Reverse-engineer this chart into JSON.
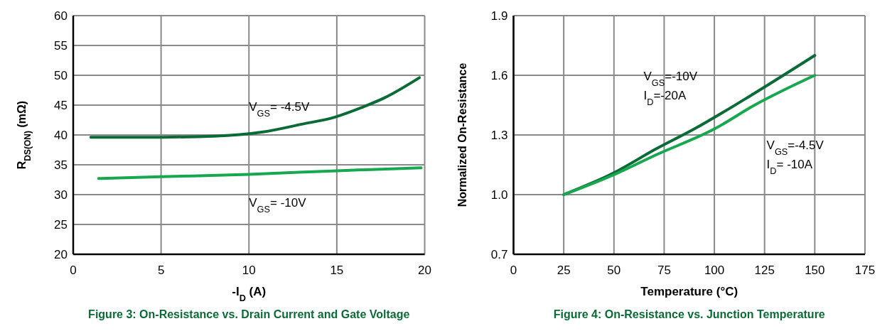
{
  "chart_data": [
    {
      "type": "line",
      "title": "Figure 3: On-Resistance vs. Drain Current and Gate Voltage",
      "xlabel": "-I$_{D}$ (A)",
      "ylabel": "R$_{DS(ON)}$ (mΩ)",
      "xlim": [
        0,
        20
      ],
      "xticks": [
        0,
        5,
        10,
        15,
        20
      ],
      "ylim": [
        20,
        60
      ],
      "yticks": [
        20,
        25,
        30,
        35,
        40,
        45,
        50,
        55,
        60
      ],
      "grid": true,
      "marker": "none",
      "line_style": "solid",
      "series": [
        {
          "color": "#0b6b36",
          "x": [
            1,
            4,
            8,
            10.8,
            13,
            14.9,
            16.5,
            17.7,
            19.7
          ],
          "values": [
            39.6,
            39.6,
            39.8,
            40.5,
            41.8,
            43,
            44.7,
            46.2,
            49.6
          ]
        },
        {
          "color": "#17a84f",
          "x": [
            1.45,
            5,
            10,
            15,
            19.8
          ],
          "values": [
            32.7,
            33,
            33.4,
            34,
            34.5
          ]
        }
      ],
      "annotations": [
        "V$_{GS}$= -4.5V",
        "V$_{GS}$= -10V"
      ]
    },
    {
      "type": "line",
      "title": "Figure 4: On-Resistance vs. Junction Temperature",
      "xlabel": "Temperature (°C)",
      "ylabel": "Normalized On-Resistance",
      "xlim": [
        0,
        175
      ],
      "xticks": [
        0,
        25,
        50,
        75,
        100,
        125,
        150,
        175
      ],
      "ylim": [
        0.7,
        1.9
      ],
      "yticks": [
        {
          "value": 0.7,
          "label": "0.7"
        },
        {
          "value": 1,
          "label": "1.0"
        },
        {
          "value": 1.3,
          "label": "1.3"
        },
        {
          "value": 1.6,
          "label": "1.6"
        },
        {
          "value": 1.9,
          "label": "1.9"
        }
      ],
      "grid": true,
      "marker": "none",
      "line_style": "solid",
      "series": [
        {
          "color": "#0b6b36",
          "x": [
            25,
            50,
            71,
            90,
            120,
            150
          ],
          "values": [
            1.0,
            1.11,
            1.23,
            1.33,
            1.51,
            1.7
          ]
        },
        {
          "color": "#17a84f",
          "x": [
            25,
            50,
            71,
            100,
            120,
            150
          ],
          "values": [
            1.0,
            1.1,
            1.2,
            1.33,
            1.45,
            1.6
          ]
        }
      ],
      "annotations": [
        "V$_{GS}$=-10V",
        "I$_{D}$=-20A",
        "V$_{GS}$=-4.5V",
        "I$_{D}$= -10A"
      ]
    }
  ]
}
